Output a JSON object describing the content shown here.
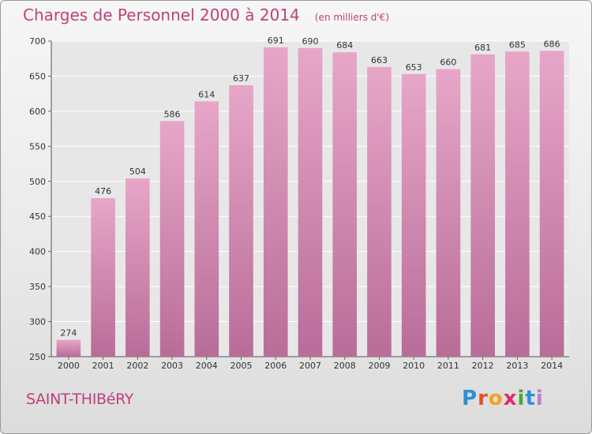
{
  "title": "Charges de Personnel 2000 à 2014",
  "subtitle": "(en milliers d'€)",
  "commune": "SAINT-THIBéRY",
  "logo": {
    "letters": [
      "P",
      "r",
      "o",
      "x",
      "i",
      "t",
      "i"
    ],
    "colors": [
      "#2e8fd6",
      "#e0502e",
      "#f2a21c",
      "#e02a6a",
      "#4aa832",
      "#2e8fd6",
      "#c07ad0"
    ]
  },
  "colors": {
    "bar_top": "#e7a6c8",
    "bar_bottom": "#b86d98",
    "title": "#c0407a"
  },
  "chart_data": {
    "type": "bar",
    "categories": [
      "2000",
      "2001",
      "2002",
      "2003",
      "2004",
      "2005",
      "2006",
      "2007",
      "2008",
      "2009",
      "2010",
      "2011",
      "2012",
      "2013",
      "2014"
    ],
    "values": [
      274,
      476,
      504,
      586,
      614,
      637,
      691,
      690,
      684,
      663,
      653,
      660,
      681,
      685,
      686
    ],
    "ylim": [
      250,
      700
    ],
    "yticks": [
      250,
      300,
      350,
      400,
      450,
      500,
      550,
      600,
      650,
      700
    ],
    "grid": true,
    "title": "Charges de Personnel 2000 à 2014",
    "xlabel": "",
    "ylabel": ""
  }
}
